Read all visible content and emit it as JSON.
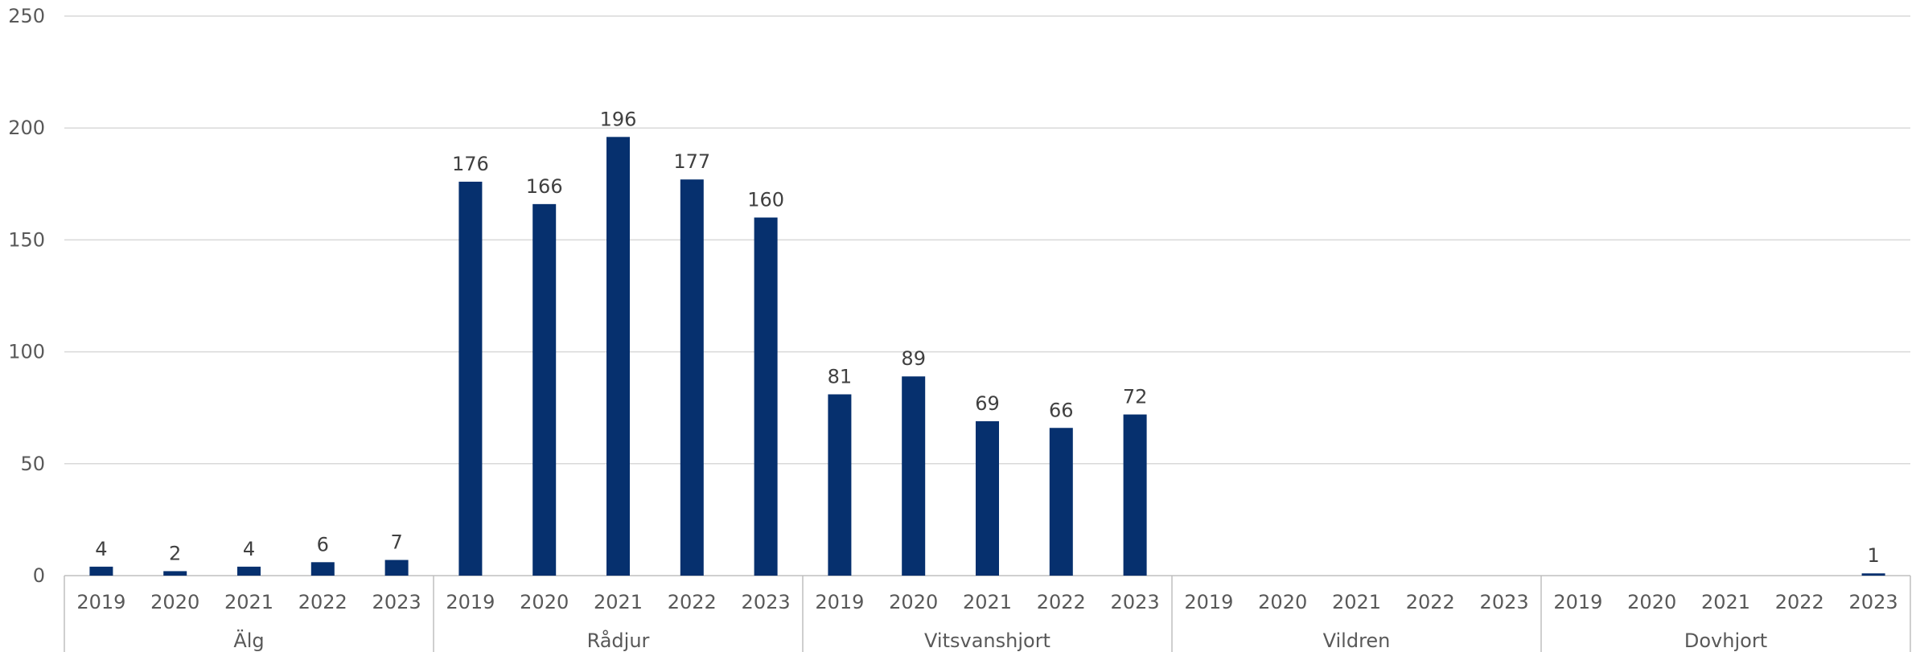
{
  "chart_data": {
    "type": "bar",
    "title": "",
    "xlabel": "",
    "ylabel": "",
    "ylim": [
      0,
      250
    ],
    "yticks": [
      0,
      50,
      100,
      150,
      200,
      250
    ],
    "grid": true,
    "legend": "none",
    "bar_color": "#06306e",
    "groups": [
      {
        "name": "Älg",
        "categories": [
          "2019",
          "2020",
          "2021",
          "2022",
          "2023"
        ],
        "values": [
          4,
          2,
          4,
          6,
          7
        ]
      },
      {
        "name": "Rådjur",
        "categories": [
          "2019",
          "2020",
          "2021",
          "2022",
          "2023"
        ],
        "values": [
          176,
          166,
          196,
          177,
          160
        ]
      },
      {
        "name": "Vitsvanshjort",
        "categories": [
          "2019",
          "2020",
          "2021",
          "2022",
          "2023"
        ],
        "values": [
          81,
          89,
          69,
          66,
          72
        ]
      },
      {
        "name": "Vildren",
        "categories": [
          "2019",
          "2020",
          "2021",
          "2022",
          "2023"
        ],
        "values": [
          null,
          null,
          null,
          null,
          null
        ]
      },
      {
        "name": "Dovhjort",
        "categories": [
          "2019",
          "2020",
          "2021",
          "2022",
          "2023"
        ],
        "values": [
          null,
          null,
          null,
          null,
          1
        ]
      }
    ]
  }
}
